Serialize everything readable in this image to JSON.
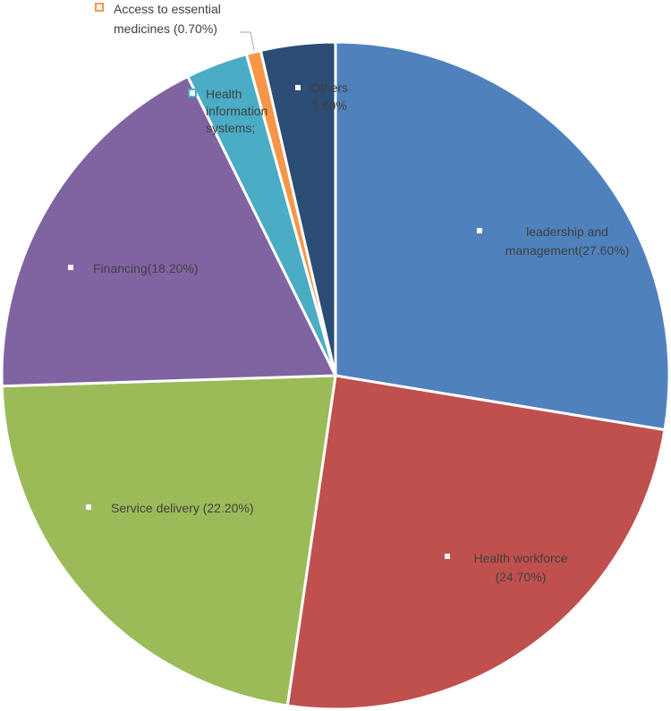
{
  "chart_data": {
    "type": "pie",
    "title": "",
    "start_angle_deg": 0,
    "direction": "clockwise",
    "slices": [
      {
        "name": "leadership and management",
        "label_lines": [
          "leadership and",
          "management(27.60%)"
        ],
        "value": 27.6,
        "color": "#4F81BD"
      },
      {
        "name": "Health workforce",
        "label_lines": [
          "Health workforce",
          "(24.70%)"
        ],
        "value": 24.7,
        "color": "#C0504D"
      },
      {
        "name": "Service delivery",
        "label_lines": [
          "Service delivery (22.20%)"
        ],
        "value": 22.2,
        "color": "#9BBB59"
      },
      {
        "name": "Financing",
        "label_lines": [
          "Financing(18.20%)"
        ],
        "value": 18.2,
        "color": "#8064A2"
      },
      {
        "name": "Health information systems",
        "label_lines": [
          "Health",
          "information",
          "systems;"
        ],
        "value": 3.0,
        "color": "#4BACC6"
      },
      {
        "name": "Access to essential medicines",
        "label_lines": [
          "Access to essential",
          "medicines (0.70%)"
        ],
        "value": 0.7,
        "color": "#F79646"
      },
      {
        "name": "Others",
        "label_lines": [
          "Others",
          "3.60%"
        ],
        "value": 3.6,
        "color": "#2C4D75"
      }
    ]
  }
}
